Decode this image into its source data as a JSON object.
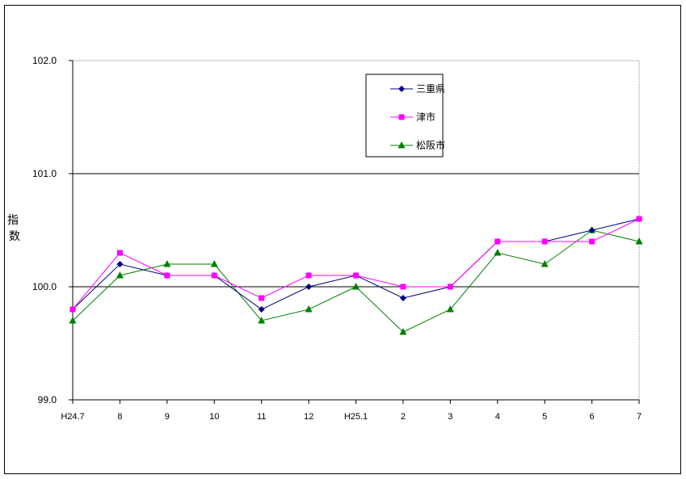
{
  "chart_data": {
    "type": "line",
    "categories": [
      "H24.7",
      "8",
      "9",
      "10",
      "11",
      "12",
      "H25.1",
      "2",
      "3",
      "4",
      "5",
      "6",
      "7"
    ],
    "series": [
      {
        "name": "三重県",
        "color": "#000080",
        "marker": "diamond",
        "values": [
          99.8,
          100.2,
          100.1,
          100.1,
          99.8,
          100.0,
          100.1,
          99.9,
          100.0,
          100.4,
          100.4,
          100.5,
          100.6
        ]
      },
      {
        "name": "津市",
        "color": "#ff00ff",
        "marker": "square",
        "values": [
          99.8,
          100.3,
          100.1,
          100.1,
          99.9,
          100.1,
          100.1,
          100.0,
          100.0,
          100.4,
          100.4,
          100.4,
          100.6
        ]
      },
      {
        "name": "松阪市",
        "color": "#008000",
        "marker": "triangle",
        "values": [
          99.7,
          100.1,
          100.2,
          100.2,
          99.7,
          99.8,
          100.0,
          99.6,
          99.8,
          100.3,
          100.2,
          100.5,
          100.4
        ]
      }
    ],
    "ylabel": "指数",
    "ylim": [
      99.0,
      102.0
    ],
    "yticks": [
      "99.0",
      "100.0",
      "101.0",
      "102.0"
    ],
    "grid": true,
    "legend": "top-center"
  }
}
